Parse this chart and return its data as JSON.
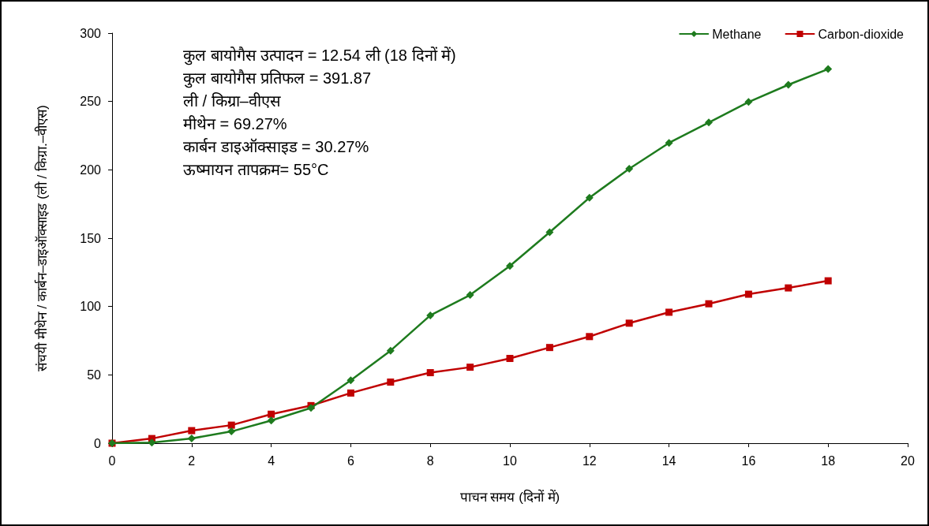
{
  "chart_data": {
    "type": "line",
    "xlabel": "पाचन समय (दिनों में)",
    "ylabel": "संचयी मीथेन / कार्बन–डाइऑक्साइड (ली / किग्रा.–वीएस)",
    "x": [
      0,
      1,
      2,
      3,
      4,
      5,
      6,
      7,
      8,
      9,
      10,
      11,
      12,
      13,
      14,
      15,
      16,
      17,
      18
    ],
    "series": [
      {
        "name": "Methane",
        "color": "#1e7b1e",
        "marker": "diamond",
        "values": [
          0,
          0.5,
          3.5,
          8.6,
          16.6,
          25.8,
          46,
          67.7,
          93.5,
          108.4,
          129.7,
          154.3,
          179.6,
          200.8,
          219.7,
          234.6,
          249.6,
          262.2,
          273.7
        ]
      },
      {
        "name": "Carbon-dioxide",
        "color": "#c00000",
        "marker": "square",
        "values": [
          0,
          3.4,
          9.2,
          13.2,
          21.2,
          27.5,
          36.7,
          44.7,
          51.6,
          55.6,
          62,
          70,
          78,
          87.8,
          95.8,
          102,
          109,
          113.6,
          118.8
        ]
      }
    ],
    "xlim": [
      0,
      20
    ],
    "xticks": [
      0,
      2,
      4,
      6,
      8,
      10,
      12,
      14,
      16,
      18,
      20
    ],
    "ylim": [
      0,
      300
    ],
    "yticks": [
      0,
      50,
      100,
      150,
      200,
      250,
      300
    ],
    "grid": false,
    "legend": "top right",
    "line_style": "solid",
    "annotations": [
      "कुल बायोगैस उत्पादन = 12.54 ली (18 दिनों में)",
      "कुल बायोगैस प्रतिफल = 391.87",
      "ली / किग्रा–वीएस",
      "मीथेन = 69.27%",
      "कार्बन डाइऑक्साइड = 30.27%",
      "ऊष्मायन तापक्रम= 55°C"
    ]
  }
}
